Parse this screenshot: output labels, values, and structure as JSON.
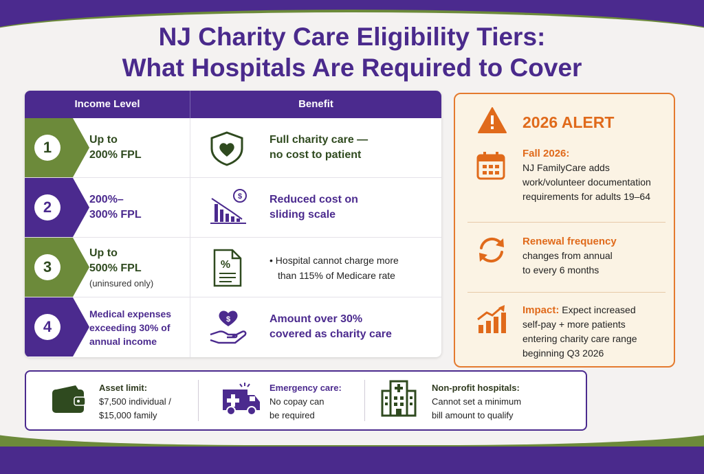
{
  "title": {
    "line1": "NJ Charity Care Eligibility Tiers:",
    "line2": "What Hospitals Are Required to Cover"
  },
  "table": {
    "header_income": "Income Level",
    "header_benefit": "Benefit",
    "rows": [
      {
        "num": "1",
        "income_line1": "Up to",
        "income_line2": "200% FPL",
        "income_note": "",
        "benefit_line1": "Full charity care —",
        "benefit_line2": "no cost to patient",
        "color": "#6c8a3a",
        "text_color": "#2f4a1f",
        "icon": "heart-shield-icon"
      },
      {
        "num": "2",
        "income_line1": "200%–",
        "income_line2": "300% FPL",
        "income_note": "",
        "benefit_line1": "Reduced cost on",
        "benefit_line2": "sliding scale",
        "color": "#4b2a8e",
        "text_color": "#4b2a8e",
        "icon": "declining-cost-chart-icon"
      },
      {
        "num": "3",
        "income_line1": "Up to",
        "income_line2": "500% FPL",
        "income_note": "(uninsured only)",
        "benefit_line1": "• Hospital cannot charge more",
        "benefit_line2": "than 115% of Medicare rate",
        "color": "#6c8a3a",
        "text_color": "#2f4a1f",
        "icon": "percent-document-icon"
      },
      {
        "num": "4",
        "income_line1": "Medical expenses",
        "income_line2": "exceeding 30% of",
        "income_line3": "annual income",
        "benefit_line1": "Amount over 30%",
        "benefit_line2": "covered as charity care",
        "color": "#4b2a8e",
        "text_color": "#4b2a8e",
        "icon": "hand-heart-dollar-icon"
      }
    ]
  },
  "alert": {
    "title": "2026 ALERT",
    "items": [
      {
        "head": "Fall 2026:",
        "text_inline": "",
        "lines": [
          "NJ FamilyCare adds",
          "work/volunteer documentation",
          "requirements for adults 19–64"
        ],
        "icon": "calendar-icon"
      },
      {
        "head": "Renewal frequency",
        "text_inline": "",
        "lines": [
          "changes from annual",
          "to every 6 months"
        ],
        "icon": "refresh-icon"
      },
      {
        "head": "Impact:",
        "text_inline": " Expect increased",
        "lines": [
          "self-pay + more patients",
          "entering charity care range",
          "beginning Q3 2026"
        ],
        "icon": "trending-up-icon"
      }
    ]
  },
  "footer": {
    "items": [
      {
        "head": "Asset limit:",
        "line1": "$7,500 individual /",
        "line2": "$15,000 family",
        "icon": "wallet-icon"
      },
      {
        "head": "Emergency care:",
        "line1": "No copay can",
        "line2": "be required",
        "icon": "ambulance-icon"
      },
      {
        "head": "Non-profit hospitals:",
        "line1": "Cannot set a minimum",
        "line2": "bill amount to qualify",
        "icon": "hospital-icon"
      }
    ]
  },
  "colors": {
    "purple": "#4b2a8e",
    "green": "#6c8a3a",
    "orange": "#e06a1b"
  }
}
